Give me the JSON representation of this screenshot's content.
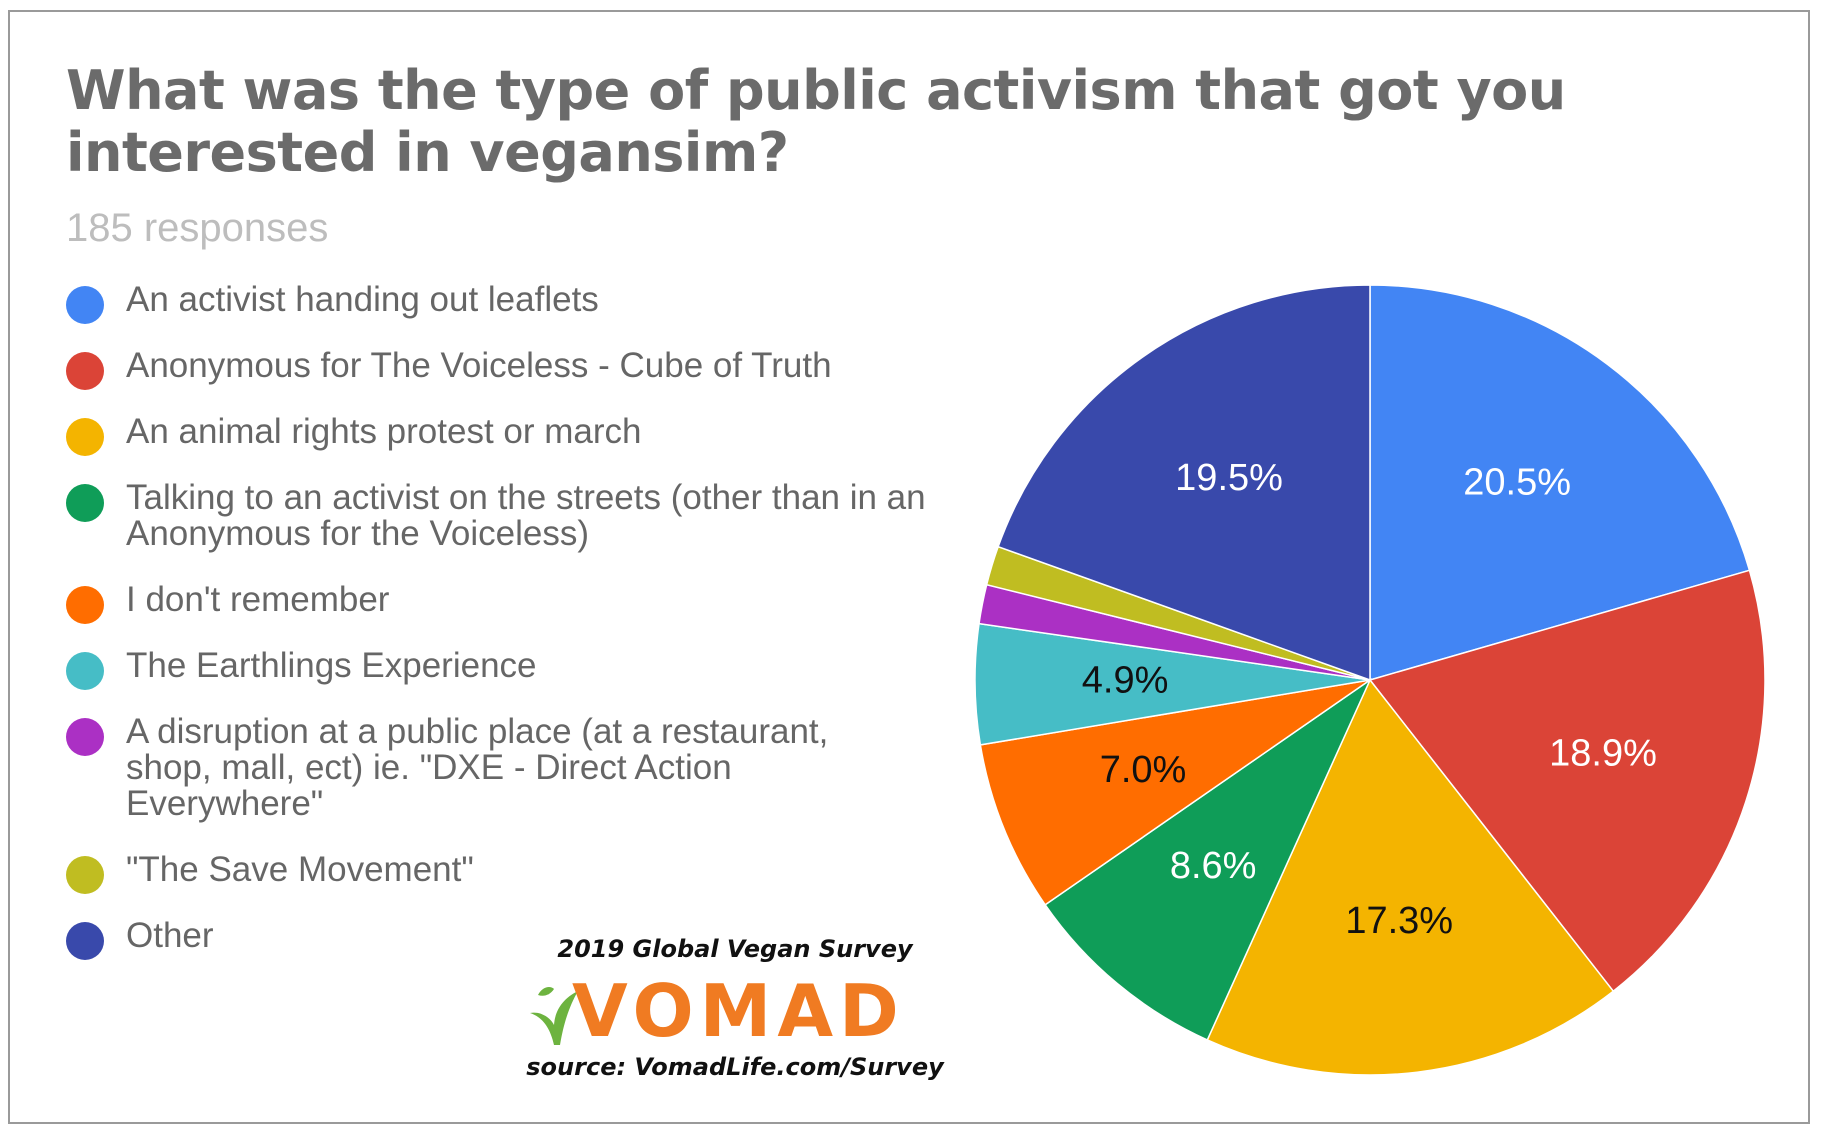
{
  "chart_data": {
    "type": "pie",
    "title": "What was the type of public activism that got you interested in vegansim?",
    "subtitle": "185 responses",
    "legend_position": "left",
    "slices": [
      {
        "label": "An activist handing out leaflets",
        "value": 20.5,
        "display": "20.5%",
        "color": "#4285f4",
        "label_color": "#ffffff"
      },
      {
        "label": "Anonymous for The Voiceless - Cube of Truth",
        "value": 18.9,
        "display": "18.9%",
        "color": "#db4437",
        "label_color": "#ffffff"
      },
      {
        "label": "An animal rights protest or march",
        "value": 17.3,
        "display": "17.3%",
        "color": "#f4b400",
        "label_color": "#111111"
      },
      {
        "label": "Talking to an activist on the streets (other than in an Anonymous for the Voiceless)",
        "value": 8.6,
        "display": "8.6%",
        "color": "#0f9d58",
        "label_color": "#ffffff"
      },
      {
        "label": "I don't remember",
        "value": 7.0,
        "display": "7.0%",
        "color": "#ff6d00",
        "label_color": "#111111"
      },
      {
        "label": "The Earthlings Experience",
        "value": 4.9,
        "display": "4.9%",
        "color": "#46bdc6",
        "label_color": "#111111"
      },
      {
        "label": "A disruption at a public place (at a restaurant, shop, mall, ect) ie. \"DXE - Direct Action Everywhere\"",
        "value": 1.6,
        "display": "",
        "color": "#ab30c4",
        "label_color": "#ffffff"
      },
      {
        "label": "\"The Save Movement\"",
        "value": 1.6,
        "display": "",
        "color": "#c0bd21",
        "label_color": "#ffffff"
      },
      {
        "label": "Other",
        "value": 19.5,
        "display": "19.5%",
        "color": "#3949ab",
        "label_color": "#ffffff"
      }
    ]
  },
  "branding": {
    "survey_title": "2019 Global Vegan Survey",
    "logo_text": "VOMAD",
    "logo_icon": "leaf-icon",
    "logo_color": "#f07b22",
    "leaf_color": "#6db33f",
    "source": "source: VomadLife.com/Survey"
  }
}
